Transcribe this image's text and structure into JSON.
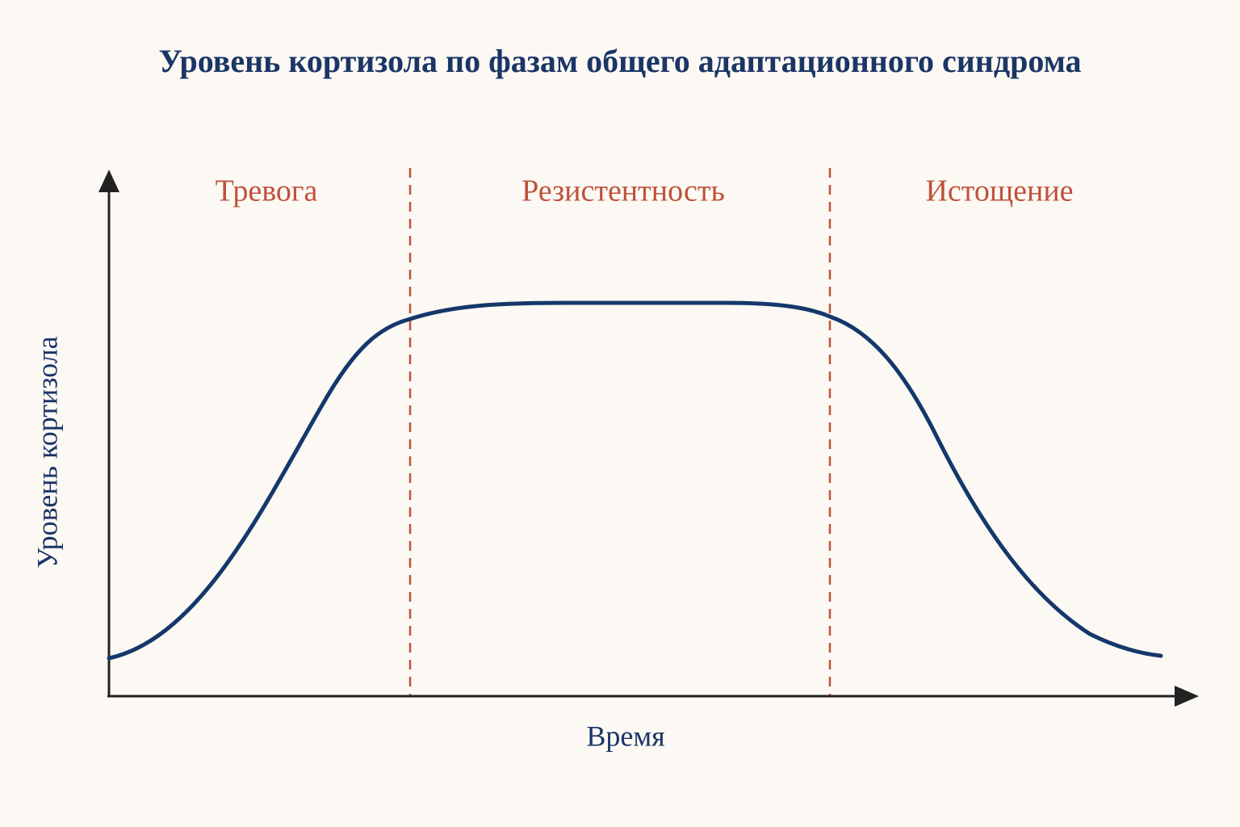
{
  "title": "Уровень кортизола по фазам общего адаптационного синдрома",
  "y_axis_label": "Уровень кортизола",
  "x_axis_label": "Время",
  "phases": [
    "Тревога",
    "Резистентность",
    "Истощение"
  ]
}
